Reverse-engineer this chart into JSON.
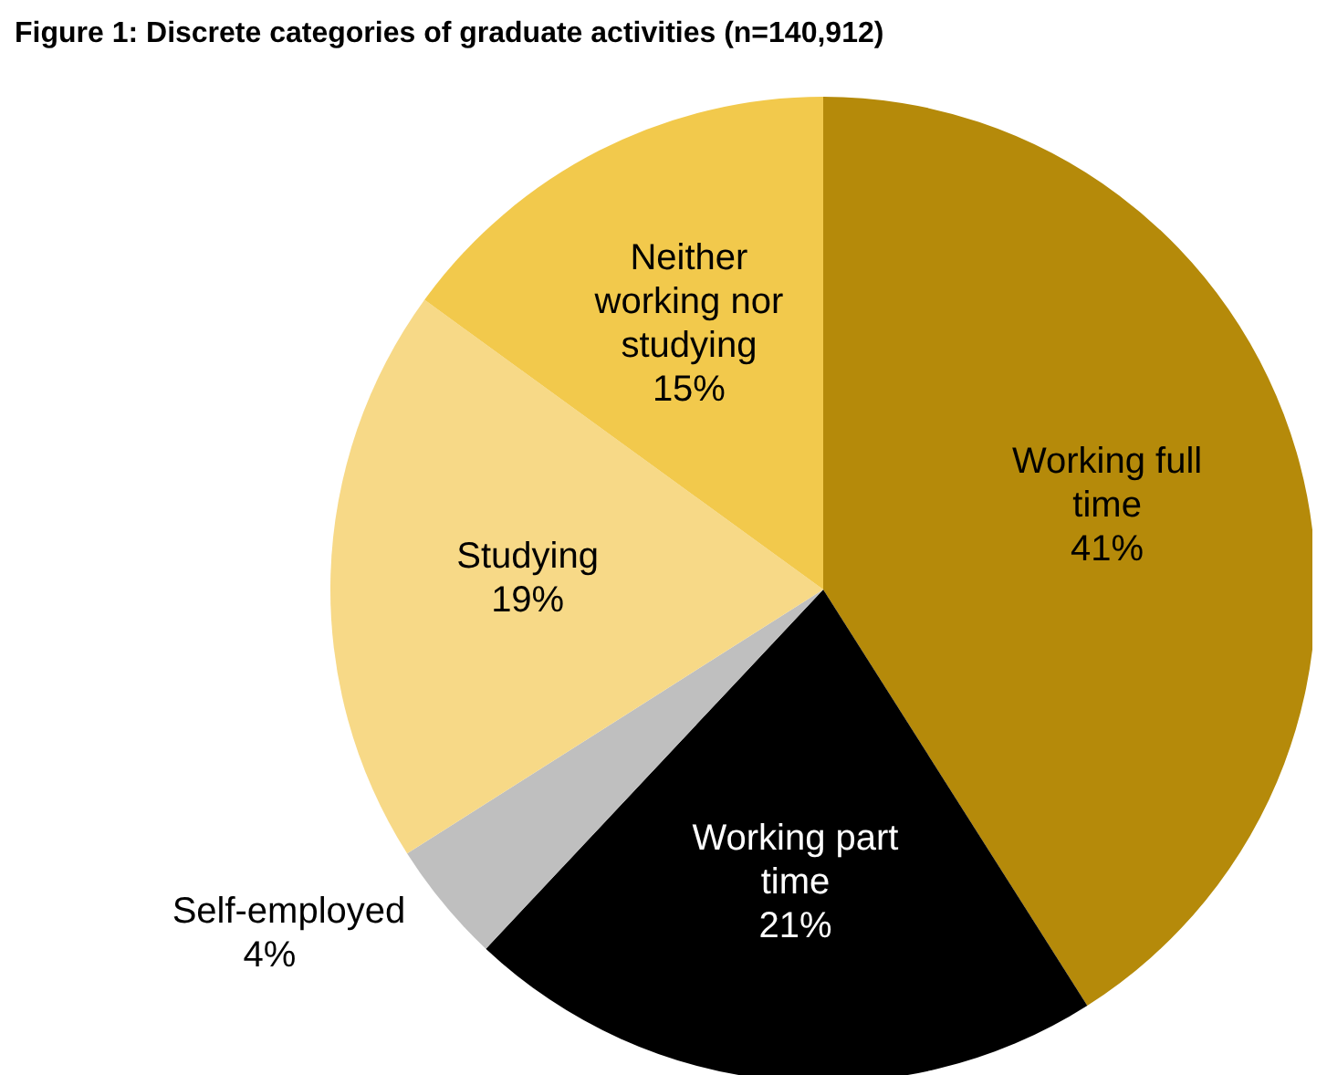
{
  "chart_data": {
    "type": "pie",
    "title": "Figure 1: Discrete categories of graduate activities (n=140,912)",
    "categories": [
      "Working full time",
      "Working part time",
      "Self-employed",
      "Studying",
      "Neither working nor studying"
    ],
    "values": [
      41,
      21,
      4,
      19,
      15
    ],
    "colors": [
      "#b58a0a",
      "#000000",
      "#bfbfbf",
      "#f7d987",
      "#f2c94c"
    ],
    "value_labels": [
      "41%",
      "21%",
      "4%",
      "19%",
      "15%"
    ]
  }
}
